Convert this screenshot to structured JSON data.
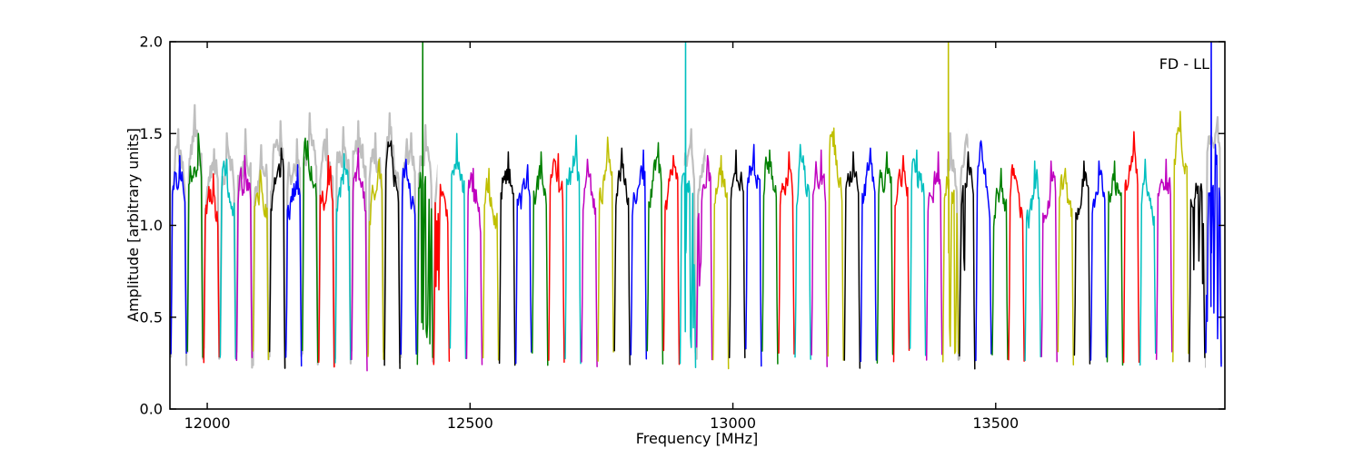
{
  "chart_data": {
    "type": "line",
    "annotation": "FD - LL",
    "xlabel": "Frequency [MHz]",
    "ylabel": "Amplitude [arbitrary units]",
    "xlim": [
      11929,
      13936
    ],
    "ylim": [
      0.0,
      2.0
    ],
    "xticks": [
      {
        "value": 12000,
        "label": "12000"
      },
      {
        "value": 12500,
        "label": "12500"
      },
      {
        "value": 13000,
        "label": "13000"
      },
      {
        "value": 13500,
        "label": "13500"
      }
    ],
    "yticks": [
      {
        "value": 0.0,
        "label": "0.0"
      },
      {
        "value": 0.5,
        "label": "0.5"
      },
      {
        "value": 1.0,
        "label": "1.0"
      },
      {
        "value": 1.5,
        "label": "1.5"
      },
      {
        "value": 2.0,
        "label": "2.0"
      }
    ],
    "grid": false,
    "legend": "none",
    "color_cycle": [
      "#0000ff",
      "#008000",
      "#ff0000",
      "#00bfbf",
      "#bf00bf",
      "#bfbf00",
      "#000000"
    ],
    "overlay_color": "#bfbfbf",
    "axis_color": "#000000",
    "band_start_mhz": 11930.0,
    "subband_width_mhz": 31.25,
    "n_subbands": 64,
    "subband_peak_amplitudes": [
      1.38,
      1.5,
      1.28,
      1.36,
      1.38,
      1.3,
      1.42,
      1.33,
      1.46,
      1.38,
      1.39,
      1.42,
      1.36,
      1.46,
      1.36,
      1.4,
      1.36,
      1.5,
      1.31,
      1.31,
      1.4,
      1.33,
      1.4,
      1.39,
      1.49,
      1.36,
      1.48,
      1.42,
      1.41,
      1.45,
      1.38,
      1.38,
      1.38,
      1.38,
      1.41,
      1.44,
      1.41,
      1.4,
      1.44,
      1.41,
      1.53,
      1.4,
      1.42,
      1.4,
      1.38,
      1.41,
      1.4,
      1.36,
      1.4,
      1.43,
      1.31,
      1.31,
      1.35,
      1.35,
      1.31,
      1.35,
      1.35,
      1.35,
      1.51,
      1.36,
      1.36,
      1.62,
      1.36,
      1.44
    ],
    "plateau_typical_amplitude": 1.15,
    "band_edge_amplitude": 0.28,
    "spike_freqs_mhz": [
      12410,
      12910,
      13410,
      13910
    ],
    "spike_amplitude_clipped_at": 2.0,
    "rfi_zones": [
      {
        "subband": 15,
        "t0": 0.15,
        "t1": 1.0,
        "depth": 0.32
      },
      {
        "subband": 16,
        "t0": 0.0,
        "t1": 0.5,
        "depth": 0.6
      },
      {
        "subband": 31,
        "t0": 0.28,
        "t1": 1.0,
        "depth": 0.27
      },
      {
        "subband": 32,
        "t0": 0.0,
        "t1": 0.4,
        "depth": 0.62
      },
      {
        "subband": 47,
        "t0": 0.45,
        "t1": 1.0,
        "depth": 0.28
      },
      {
        "subband": 48,
        "t0": 0.0,
        "t1": 0.4,
        "depth": 0.7
      },
      {
        "subband": 62,
        "t0": 0.3,
        "t1": 1.0,
        "depth": 0.62
      },
      {
        "subband": 63,
        "t0": 0.0,
        "t1": 1.0,
        "depth": 0.38
      }
    ],
    "gray_overlay_regions_mhz": [
      [
        11929,
        12438
      ],
      [
        12907,
        12948
      ],
      [
        13407,
        13448
      ],
      [
        13898,
        13933
      ]
    ],
    "gray_overlay_gain": 1.09
  }
}
